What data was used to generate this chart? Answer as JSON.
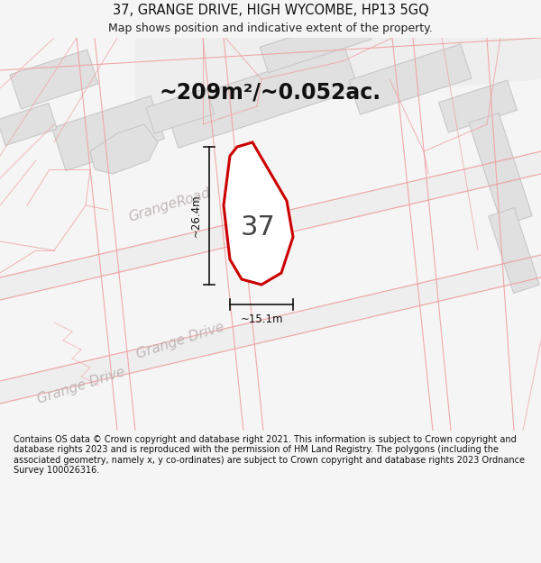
{
  "title": "37, GRANGE DRIVE, HIGH WYCOMBE, HP13 5GQ",
  "subtitle": "Map shows position and indicative extent of the property.",
  "area_text": "~209m²/~0.052ac.",
  "label_37": "37",
  "dim_vertical": "~26.4m",
  "dim_horizontal": "~15.1m",
  "footer_text": "Contains OS data © Crown copyright and database right 2021. This information is subject to Crown copyright and database rights 2023 and is reproduced with the permission of HM Land Registry. The polygons (including the associated geometry, namely x, y co-ordinates) are subject to Crown copyright and database rights 2023 Ordnance Survey 100026316.",
  "bg_color": "#f5f5f5",
  "map_bg": "#ffffff",
  "plot_fill": "#ffffff",
  "plot_edge": "#cc0000",
  "building_fill": "#e0e0e0",
  "building_edge": "#c8c8c8",
  "road_line_color": "#f0a0a0",
  "road_fill_color": "#eeeeee",
  "road_label_color": "#c0b8b8",
  "title_color": "#111111",
  "subtitle_color": "#222222",
  "area_color": "#111111",
  "label_color": "#444444",
  "footer_color": "#111111",
  "dim_line_color": "#111111"
}
